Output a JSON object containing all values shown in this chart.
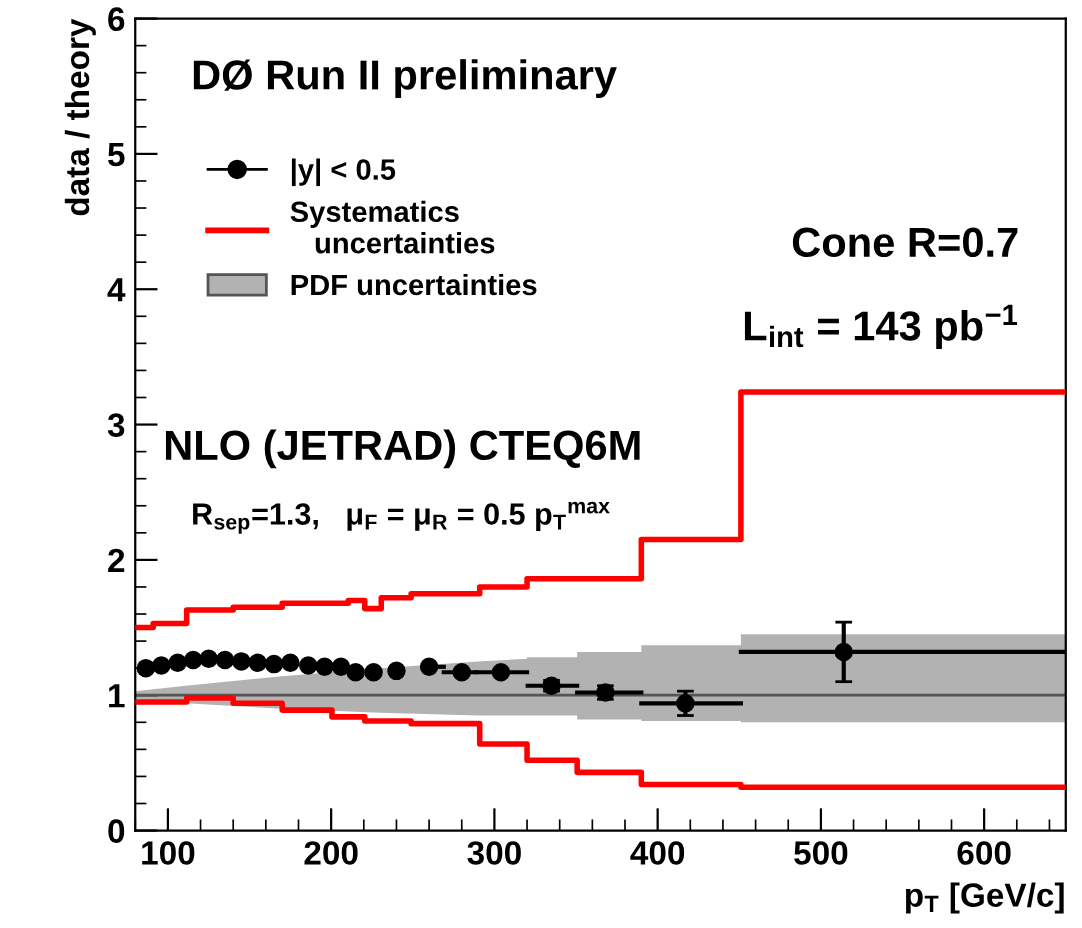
{
  "chart_data": {
    "type": "scatter",
    "title": "DØ Run II preliminary",
    "xlabel": "p$_{T}$ [GeV/c]",
    "ylabel": "data / theory",
    "annotations": [
      "Cone R=0.7",
      "L$_{int}$ = 143 pb$^{−1}$",
      "NLO (JETRAD) CTEQ6M",
      "R$_{sep}$=1.3,   μ$_{F}$ = μ$_{R}$ = 0.5 p$_{T}$$^{max}$"
    ],
    "xlim": [
      80,
      650
    ],
    "xticks": [
      100,
      200,
      300,
      400,
      500,
      600
    ],
    "ylim": [
      0,
      6
    ],
    "yticks": [
      0,
      1,
      2,
      3,
      4,
      5,
      6
    ],
    "legend": "top left",
    "grid": false,
    "series": [
      {
        "name": "PDF uncertainties",
        "type": "line",
        "color": "#555555",
        "x": [
          80,
          111,
          170,
          230,
          290,
          320,
          320,
          350.7,
          350.7,
          390,
          390,
          451,
          451,
          650
        ],
        "values": [
          1,
          1,
          1,
          1,
          1,
          1,
          1,
          1,
          1,
          1,
          1,
          1,
          1,
          1
        ],
        "lower": [
          0.97,
          0.94,
          0.9,
          0.87,
          0.85,
          0.85,
          0.85,
          0.85,
          0.82,
          0.82,
          0.81,
          0.81,
          0.8,
          0.8
        ],
        "upper": [
          1.03,
          1.07,
          1.14,
          1.2,
          1.25,
          1.27,
          1.28,
          1.28,
          1.32,
          1.32,
          1.37,
          1.37,
          1.45,
          1.45
        ]
      },
      {
        "name": "Systematics\n   uncertainties",
        "type": "step",
        "color": "#ff0000",
        "x": [
          80,
          91,
          111.5,
          140,
          170,
          210.5,
          220.6,
          230.7,
          249,
          291,
          320,
          390,
          451,
          650
        ],
        "values": [
          1.5,
          1.53,
          1.63,
          1.65,
          1.68,
          1.7,
          1.64,
          1.72,
          1.75,
          1.8,
          1.86,
          2.15,
          3.24,
          3.24
        ]
      },
      {
        "type": "step",
        "color": "#ff0000",
        "x": [
          80,
          111.5,
          140,
          170,
          200.5,
          220.6,
          249,
          291,
          320,
          350.7,
          390,
          451,
          650
        ],
        "values": [
          0.95,
          0.98,
          0.94,
          0.89,
          0.84,
          0.81,
          0.79,
          0.64,
          0.52,
          0.43,
          0.34,
          0.32,
          0.32
        ]
      },
      {
        "name": "|y| < 0.5",
        "color": "#000000",
        "marker": "circle",
        "x": [
          86.5,
          96,
          106,
          115.5,
          125,
          135,
          145,
          155,
          165,
          175,
          186,
          196,
          206,
          215,
          226,
          240,
          260,
          280,
          304,
          335,
          368,
          417,
          514
        ],
        "values": [
          1.2,
          1.22,
          1.24,
          1.26,
          1.27,
          1.26,
          1.25,
          1.24,
          1.23,
          1.24,
          1.22,
          1.21,
          1.21,
          1.17,
          1.17,
          1.18,
          1.21,
          1.17,
          1.17,
          1.07,
          1.02,
          0.94,
          1.32
        ],
        "errors": [
          null,
          null,
          null,
          null,
          null,
          null,
          null,
          null,
          null,
          null,
          null,
          null,
          null,
          null,
          null,
          null,
          null,
          null,
          null,
          0.04,
          0.05,
          0.09,
          0.22
        ],
        "xerrors": [
          null,
          null,
          null,
          null,
          null,
          null,
          null,
          null,
          null,
          null,
          null,
          null,
          null,
          null,
          null,
          null,
          [
            257,
            269
          ],
          [
            269,
            289
          ],
          [
            289,
            320
          ],
          [
            320.4,
            350.7
          ],
          [
            350.7,
            390
          ],
          [
            390,
            451
          ],
          [
            451,
            650
          ]
        ]
      }
    ]
  }
}
